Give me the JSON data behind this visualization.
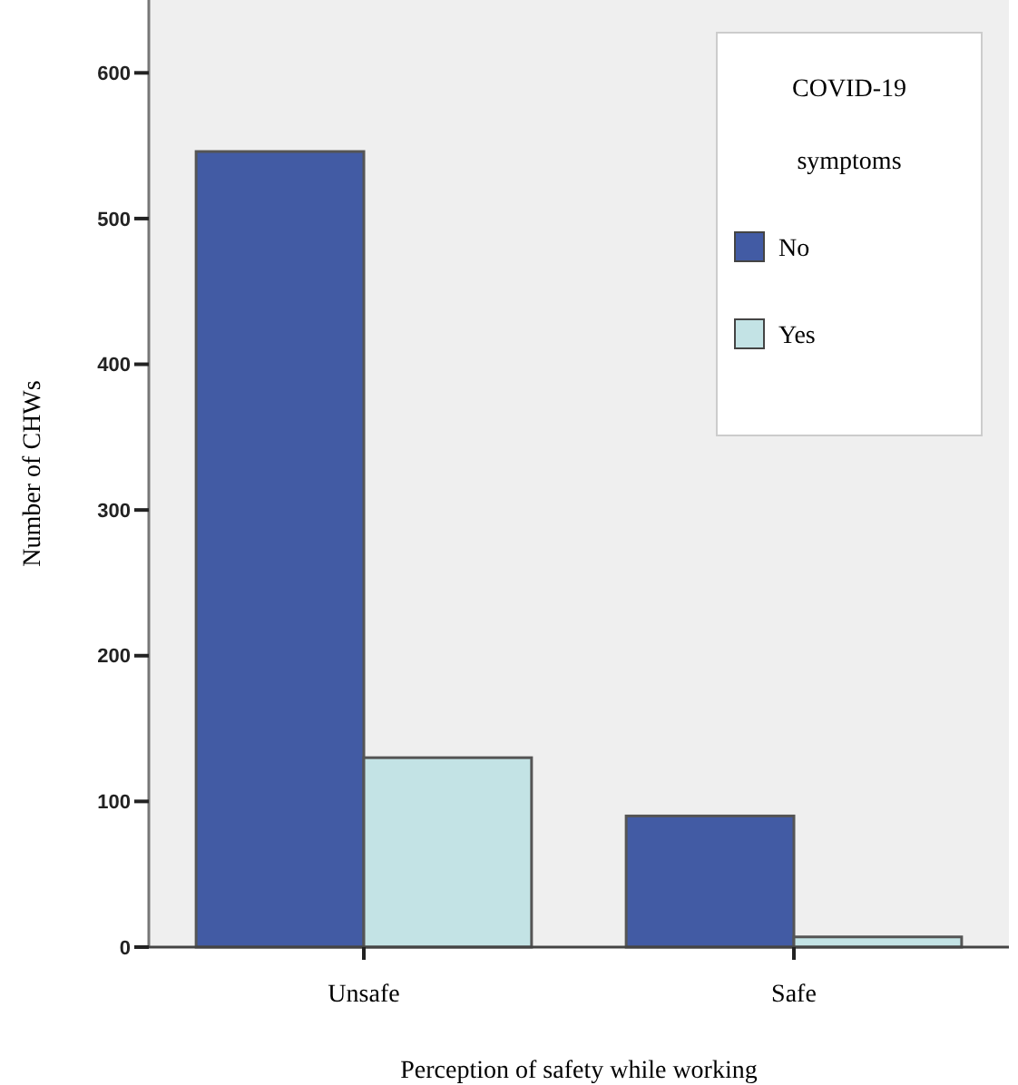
{
  "chart_data": {
    "type": "bar",
    "xlabel": "Perception of safety while working",
    "ylabel": "Number of CHWs",
    "legend_title": "COVID-19 symptoms",
    "categories": [
      "Unsafe",
      "Safe"
    ],
    "series": [
      {
        "name": "No",
        "color": "#425ba4",
        "values": [
          546,
          90
        ]
      },
      {
        "name": "Yes",
        "color": "#c3e3e5",
        "values": [
          130,
          7
        ]
      }
    ],
    "ylim": [
      0,
      650
    ],
    "yticks": [
      0,
      100,
      200,
      300,
      400,
      500,
      600
    ],
    "legend": "top right",
    "grid": false
  }
}
